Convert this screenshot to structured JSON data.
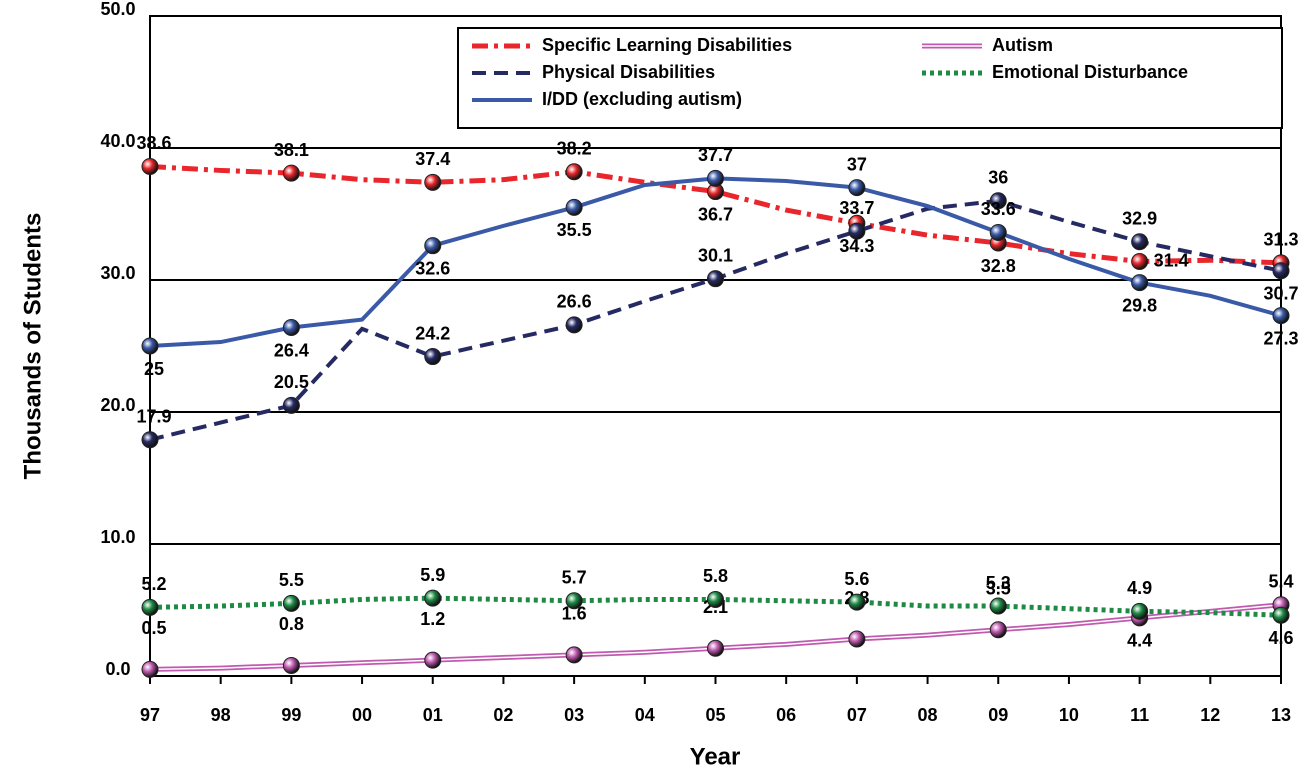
{
  "chart_data": {
    "type": "line",
    "x_label": "Year",
    "y_label": "Thousands of Students",
    "categories": [
      "97",
      "98",
      "99",
      "00",
      "01",
      "02",
      "03",
      "04",
      "05",
      "06",
      "07",
      "08",
      "09",
      "10",
      "11",
      "12",
      "13"
    ],
    "ylim": [
      0,
      50
    ],
    "yticks": [
      {
        "value": 0,
        "label": "0.0"
      },
      {
        "value": 10,
        "label": "10.0"
      },
      {
        "value": 20,
        "label": "20.0"
      },
      {
        "value": 30,
        "label": "30.0"
      },
      {
        "value": 40,
        "label": "40.0"
      },
      {
        "value": 50,
        "label": "50.0"
      }
    ],
    "grid": true,
    "legend": "top-right",
    "series": [
      {
        "name": "Specific Learning Disabilities",
        "color": "#e8262b",
        "style": "dashdot",
        "values": [
          38.6,
          38.3,
          38.1,
          37.6,
          37.4,
          37.6,
          38.2,
          37.4,
          36.7,
          35.3,
          34.3,
          33.4,
          32.8,
          32.0,
          31.4,
          31.5,
          31.3
        ]
      },
      {
        "name": "Physical Disabilities",
        "color": "#262a63",
        "style": "dashed",
        "values": [
          17.9,
          19.2,
          20.5,
          26.3,
          24.2,
          25.4,
          26.6,
          28.4,
          30.1,
          32.0,
          33.7,
          35.4,
          36.0,
          34.4,
          32.9,
          31.8,
          30.7
        ]
      },
      {
        "name": "I/DD (excluding autism)",
        "color": "#3a5aa8",
        "style": "solid",
        "values": [
          25.0,
          25.3,
          26.4,
          27.0,
          32.6,
          34.1,
          35.5,
          37.2,
          37.7,
          37.5,
          37.0,
          35.6,
          33.6,
          31.6,
          29.8,
          28.8,
          27.3
        ]
      },
      {
        "name": "Autism",
        "color": "#c05ab0",
        "style": "double",
        "values": [
          0.5,
          0.6,
          0.8,
          1.0,
          1.2,
          1.4,
          1.6,
          1.8,
          2.1,
          2.4,
          2.8,
          3.1,
          3.5,
          3.9,
          4.4,
          4.9,
          5.4
        ]
      },
      {
        "name": "Emotional Disturbance",
        "color": "#1e8a45",
        "style": "dotted",
        "values": [
          5.2,
          5.3,
          5.5,
          5.8,
          5.9,
          5.8,
          5.7,
          5.8,
          5.8,
          5.7,
          5.6,
          5.3,
          5.3,
          5.1,
          4.9,
          4.8,
          4.6
        ]
      }
    ]
  }
}
